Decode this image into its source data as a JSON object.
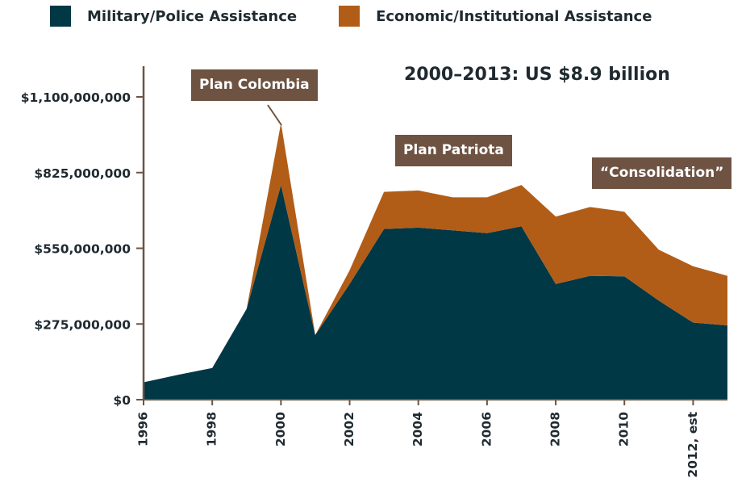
{
  "legend": {
    "items": [
      {
        "label": "Military/Police Assistance",
        "color": "#013846"
      },
      {
        "label": "Economic/Institutional Assistance",
        "color": "#b15d18"
      }
    ]
  },
  "annotations": {
    "total": "2000–2013: US $8.9 billion",
    "plan_colombia": "Plan Colombia",
    "plan_patriota": "Plan Patriota",
    "consolidation": "“Consolidation”"
  },
  "chart_data": {
    "type": "area",
    "stacked": true,
    "x": [
      1996,
      1997,
      1998,
      1999,
      2000,
      2001,
      2002,
      2003,
      2004,
      2005,
      2006,
      2007,
      2008,
      2009,
      2010,
      2011,
      2012,
      2013
    ],
    "x_tick_labels": [
      "1996",
      "1998",
      "2000",
      "2002",
      "2004",
      "2006",
      "2008",
      "2010",
      "2012, est"
    ],
    "x_tick_values": [
      1996,
      1998,
      2000,
      2002,
      2004,
      2006,
      2008,
      2010,
      2012
    ],
    "y_ticks": [
      0,
      275000000,
      550000000,
      825000000,
      1100000000
    ],
    "y_tick_labels": [
      "$0",
      "$275,000,000",
      "$550,000,000",
      "$825,000,000",
      "$1,100,000,000"
    ],
    "ylim": [
      0,
      1100000000
    ],
    "series": [
      {
        "name": "Military/Police Assistance",
        "color": "#013846",
        "values": [
          63000000,
          90000000,
          115000000,
          330000000,
          780000000,
          235000000,
          420000000,
          620000000,
          625000000,
          615000000,
          605000000,
          630000000,
          420000000,
          450000000,
          448000000,
          360000000,
          280000000,
          270000000
        ]
      },
      {
        "name": "Economic/Institutional Assistance",
        "color": "#b15d18",
        "values": [
          0,
          0,
          0,
          0,
          225000000,
          0,
          50000000,
          135000000,
          135000000,
          120000000,
          130000000,
          150000000,
          245000000,
          250000000,
          235000000,
          185000000,
          205000000,
          180000000
        ]
      }
    ]
  }
}
